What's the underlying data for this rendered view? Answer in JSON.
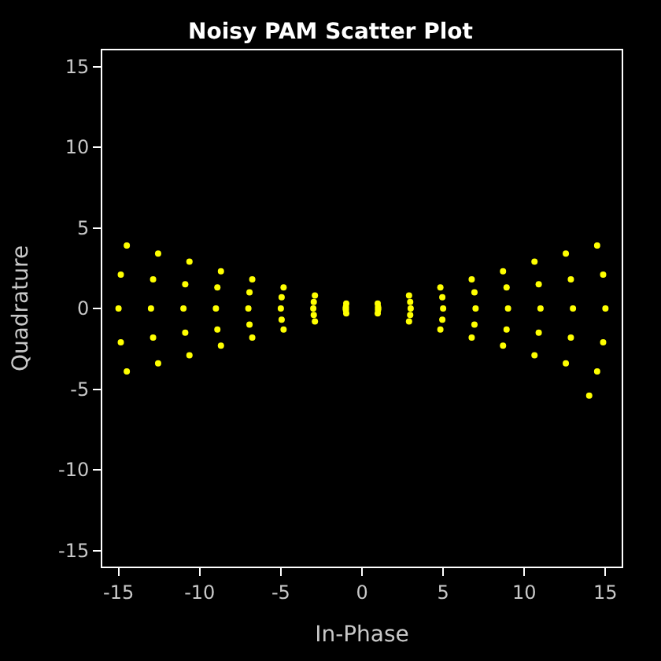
{
  "chart_data": {
    "type": "scatter",
    "title": "Noisy PAM Scatter Plot",
    "xlabel": "In-Phase",
    "ylabel": "Quadrature",
    "x": [
      -14.49,
      -14.86,
      -15,
      -14.86,
      -14.49,
      -12.56,
      -12.87,
      -13,
      -12.87,
      -12.56,
      -10.63,
      -10.89,
      -11,
      -10.89,
      -10.63,
      -8.69,
      -8.91,
      -9,
      -8.91,
      -8.69,
      -6.76,
      -6.93,
      -7,
      -6.93,
      -6.76,
      -4.83,
      -4.95,
      -5,
      -4.95,
      -4.83,
      -2.9,
      -2.97,
      -3,
      -2.97,
      -2.9,
      -0.97,
      -0.99,
      -1,
      -0.99,
      -0.97,
      0.97,
      0.99,
      1,
      0.99,
      0.97,
      2.9,
      2.97,
      3,
      2.97,
      2.9,
      4.83,
      4.95,
      5,
      4.95,
      4.83,
      6.76,
      6.93,
      7,
      6.93,
      6.76,
      8.69,
      8.91,
      9,
      8.91,
      8.69,
      10.63,
      10.89,
      11,
      10.89,
      10.63,
      12.56,
      12.87,
      13,
      12.87,
      12.56,
      14.49,
      14.86,
      15,
      14.86,
      14.49,
      14
    ],
    "series": [
      {
        "color": "#ffff00",
        "values": [
          -3.9,
          -2.1,
          0,
          2.1,
          3.9,
          -3.4,
          -1.8,
          0,
          1.8,
          3.4,
          -2.9,
          -1.5,
          0,
          1.5,
          2.9,
          -2.3,
          -1.3,
          0,
          1.3,
          2.3,
          -1.8,
          -1,
          0,
          1,
          1.8,
          -1.3,
          -0.7,
          0,
          0.7,
          1.3,
          -0.8,
          -0.4,
          0,
          0.4,
          0.8,
          -0.3,
          -0.1,
          0,
          0.1,
          0.3,
          -0.3,
          -0.1,
          0,
          0.1,
          0.3,
          -0.8,
          -0.4,
          0,
          0.4,
          0.8,
          -1.3,
          -0.7,
          0,
          0.7,
          1.3,
          -1.8,
          -1,
          0,
          1,
          1.8,
          -2.3,
          -1.3,
          0,
          1.3,
          2.3,
          -2.9,
          -1.5,
          0,
          1.5,
          2.9,
          -3.4,
          -1.8,
          0,
          1.8,
          3.4,
          -3.9,
          -2.1,
          0,
          2.1,
          3.9,
          -5.4
        ]
      }
    ],
    "xlim": [
      -16,
      16
    ],
    "ylim": [
      -16,
      16
    ],
    "xticks": [
      -15,
      -10,
      -5,
      0,
      5,
      10,
      15
    ],
    "yticks": [
      -15,
      -10,
      -5,
      0,
      5,
      10,
      15
    ],
    "grid": false,
    "legend": false,
    "marker": "circle"
  }
}
